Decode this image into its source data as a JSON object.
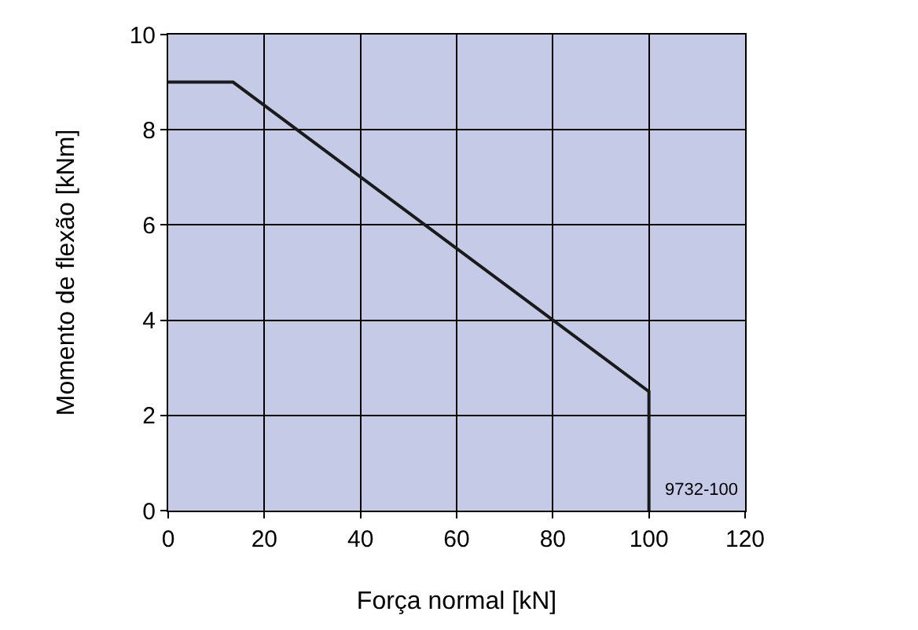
{
  "chart_data": {
    "type": "line",
    "xlabel": "Força normal [kN]",
    "ylabel": "Momento de flexão [kNm]",
    "x": [
      0,
      13.5,
      100,
      100
    ],
    "series": [
      {
        "color": "#1a1a1a",
        "values": [
          9,
          9,
          2.5,
          0
        ]
      }
    ],
    "xlim": [
      0,
      120
    ],
    "xticks": [
      0,
      20,
      40,
      60,
      80,
      100,
      120
    ],
    "ylim": [
      0,
      10
    ],
    "yticks": [
      0,
      2,
      4,
      6,
      8,
      10
    ],
    "grid": true,
    "legend": false,
    "marker": "none",
    "line_style": "solid",
    "annotations": [
      "9732-100"
    ]
  }
}
